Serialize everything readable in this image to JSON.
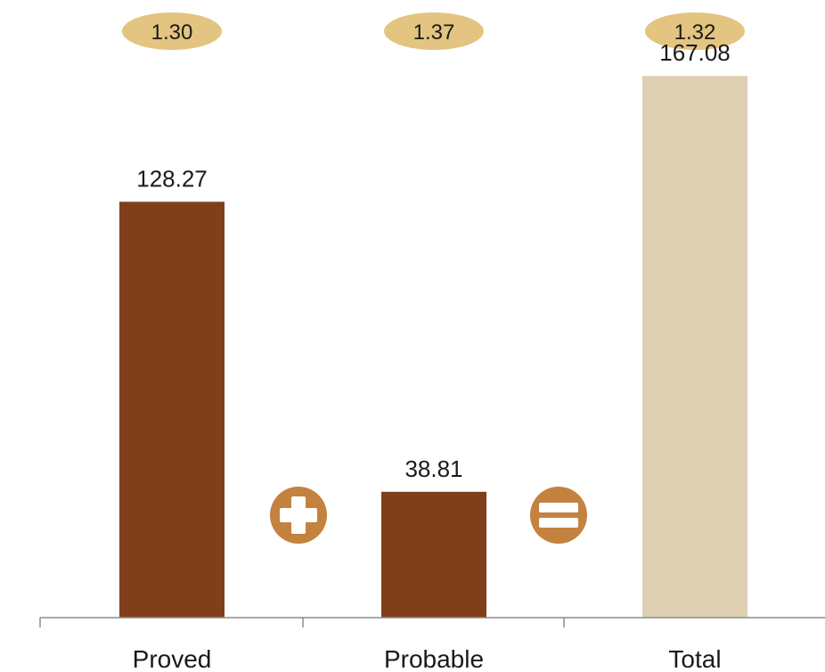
{
  "chart_data": {
    "type": "bar",
    "categories": [
      "Proved",
      "Probable",
      "Total"
    ],
    "values": [
      128.27,
      38.81,
      167.08
    ],
    "value_labels": [
      "128.27",
      "38.81",
      "167.08"
    ],
    "ratios": [
      "1.30",
      "1.37",
      "1.32"
    ],
    "ylim": [
      0,
      185
    ],
    "grid": false,
    "legend": "none",
    "operators": [
      {
        "between": [
          0,
          1
        ],
        "symbol": "plus",
        "icon": "plus-circle-icon"
      },
      {
        "between": [
          1,
          2
        ],
        "symbol": "equals",
        "icon": "equals-circle-icon"
      }
    ],
    "colors": {
      "bars": [
        "#7f3f1a",
        "#7f3f1a",
        "#dfcfb2"
      ],
      "badge": "#e3c480",
      "operator": "#c4823f",
      "axis": "#8c8c8c"
    }
  }
}
